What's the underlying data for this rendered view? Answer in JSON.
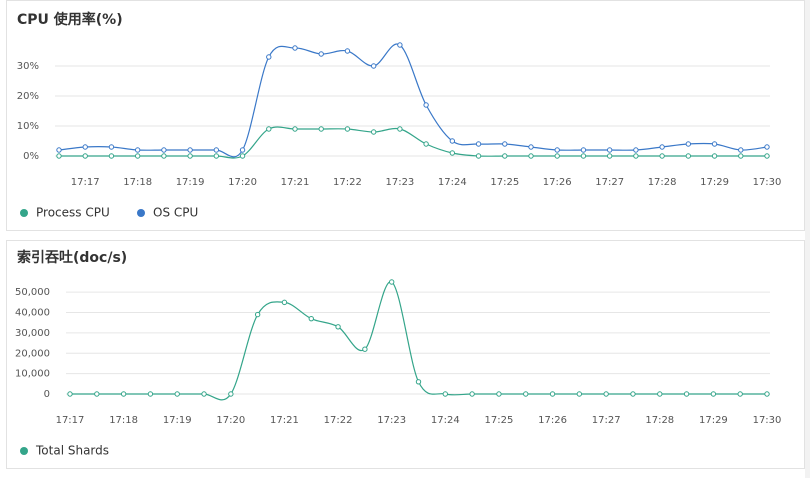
{
  "chart_data": [
    {
      "type": "line",
      "title": "CPU 使用率(%)",
      "categories": [
        null,
        "17:17",
        null,
        "17:18",
        null,
        "17:19",
        null,
        "17:20",
        null,
        "17:21",
        null,
        "17:22",
        null,
        "17:23",
        null,
        "17:24",
        null,
        "17:25",
        null,
        "17:26",
        null,
        "17:27",
        null,
        "17:28",
        null,
        "17:29",
        null,
        "17:30"
      ],
      "series": [
        {
          "name": "Process CPU",
          "color": "#34a58a",
          "values": [
            0,
            0,
            0,
            0,
            0,
            0,
            0,
            0,
            9,
            9,
            9,
            9,
            8,
            9,
            4,
            1,
            0,
            0,
            0,
            0,
            0,
            0,
            0,
            0,
            0,
            0,
            0,
            0
          ]
        },
        {
          "name": "OS CPU",
          "color": "#3a78c8",
          "values": [
            2,
            3,
            3,
            2,
            2,
            2,
            2,
            2,
            33,
            36,
            34,
            35,
            30,
            37,
            17,
            5,
            4,
            4,
            3,
            2,
            2,
            2,
            2,
            3,
            4,
            4,
            2,
            3
          ]
        }
      ],
      "ylim": [
        0,
        40
      ],
      "yticks": [
        {
          "value": 0,
          "label": "0%"
        },
        {
          "value": 10,
          "label": "10%"
        },
        {
          "value": 20,
          "label": "20%"
        },
        {
          "value": 30,
          "label": "30%"
        }
      ],
      "grid": true
    },
    {
      "type": "line",
      "title": "索引吞吐(doc/s)",
      "categories": [
        "17:17",
        null,
        "17:18",
        null,
        "17:19",
        null,
        "17:20",
        null,
        "17:21",
        null,
        "17:22",
        null,
        "17:23",
        null,
        "17:24",
        null,
        "17:25",
        null,
        "17:26",
        null,
        "17:27",
        null,
        "17:28",
        null,
        "17:29",
        null,
        "17:30"
      ],
      "series": [
        {
          "name": "Total Shards",
          "color": "#34a58a",
          "values": [
            0,
            0,
            0,
            0,
            0,
            0,
            0,
            39000,
            45000,
            37000,
            33000,
            22000,
            55000,
            6000,
            0,
            0,
            0,
            0,
            0,
            0,
            0,
            0,
            0,
            0,
            0,
            0,
            0
          ]
        }
      ],
      "ylim": [
        0,
        55000
      ],
      "yticks": [
        0,
        {
          "value": 10000,
          "label": "10,000"
        },
        {
          "value": 20000,
          "label": "20,000"
        },
        {
          "value": 30000,
          "label": "30,000"
        },
        {
          "value": 40000,
          "label": "40,000"
        },
        {
          "value": 50000,
          "label": "50,000"
        }
      ],
      "grid": true
    }
  ]
}
